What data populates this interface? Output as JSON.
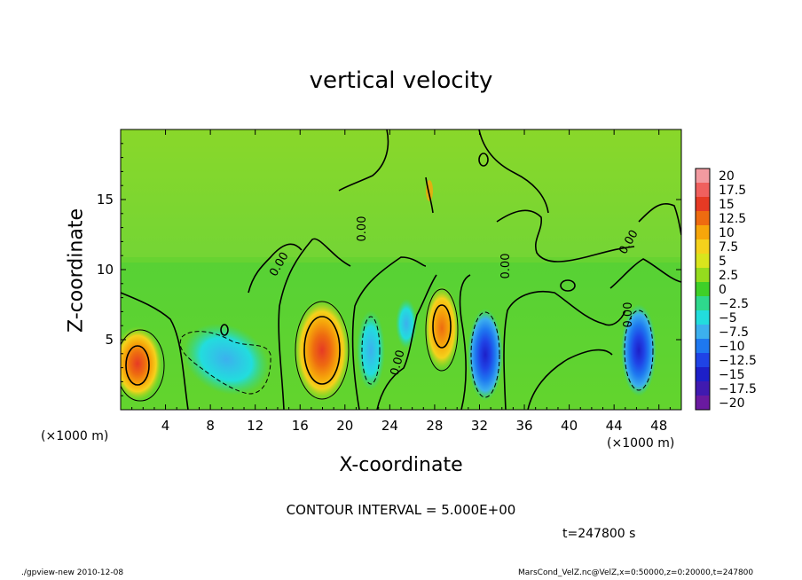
{
  "chart_data": {
    "type": "heatmap",
    "title": "vertical velocity",
    "xlabel": "X-coordinate",
    "ylabel": "Z-coordinate",
    "x_unit": "(×1000 m)",
    "y_unit": "(×1000 m)",
    "xlim": [
      0,
      50
    ],
    "ylim": [
      0,
      20
    ],
    "x_ticks": [
      4,
      8,
      12,
      16,
      20,
      24,
      28,
      32,
      36,
      40,
      44,
      48
    ],
    "y_ticks": [
      5,
      10,
      15
    ],
    "colorbar": {
      "levels": [
        20,
        17.5,
        15,
        12.5,
        10,
        7.5,
        5,
        2.5,
        0,
        -2.5,
        -5,
        -7.5,
        -10,
        -12.5,
        -15,
        -17.5,
        -20
      ],
      "colors": [
        "#f29aa0",
        "#f0605e",
        "#e63a24",
        "#ee6b10",
        "#f6a60a",
        "#f5d21c",
        "#d9e51d",
        "#95dc1e",
        "#3fd028",
        "#2ed88d",
        "#22dddd",
        "#3cb0ee",
        "#1e78f0",
        "#1f43e6",
        "#1d1fc8",
        "#401ab0",
        "#6a1aa0"
      ]
    },
    "features": [
      {
        "sign": "positive",
        "x": 1.5,
        "z": 3.0,
        "peak": 10
      },
      {
        "sign": "negative",
        "x": 9.5,
        "z": 3.5,
        "peak": -7.5
      },
      {
        "sign": "positive",
        "x": 18.0,
        "z": 4.0,
        "peak": 12.5
      },
      {
        "sign": "negative",
        "x": 22.5,
        "z": 4.0,
        "peak": -5
      },
      {
        "sign": "positive",
        "x": 28.8,
        "z": 5.5,
        "peak": 10
      },
      {
        "sign": "negative",
        "x": 32.5,
        "z": 3.5,
        "peak": -10
      },
      {
        "sign": "negative",
        "x": 46.0,
        "z": 3.0,
        "peak": -12.5
      }
    ],
    "contour_labels": [
      "0.00",
      "0.00",
      "0.00",
      "0.00",
      "0.00",
      "0.00"
    ],
    "contour_interval_text": "CONTOUR INTERVAL = 5.000E+00",
    "time_text": "t=247800 s"
  },
  "footer": {
    "left": "./gpview-new   2010-12-08",
    "right": "MarsCond_VelZ.nc@VelZ,x=0:50000,z=0:20000,t=247800"
  }
}
